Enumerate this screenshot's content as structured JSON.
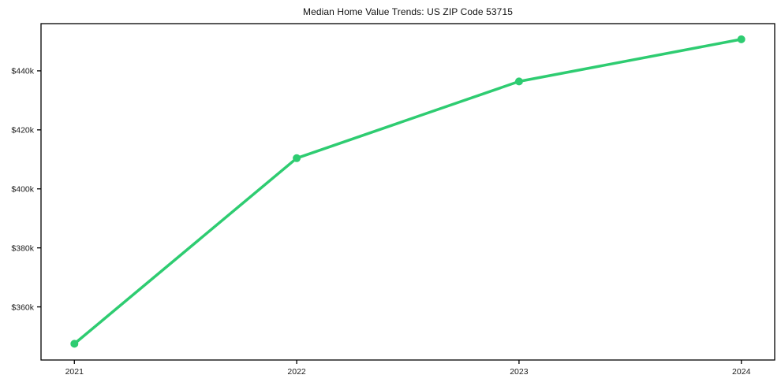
{
  "chart_data": {
    "type": "line",
    "title": "Median Home Value Trends: US ZIP Code 53715",
    "xlabel": "",
    "ylabel": "",
    "x": [
      2021,
      2022,
      2023,
      2024
    ],
    "x_tick_labels": [
      "2021",
      "2022",
      "2023",
      "2024"
    ],
    "series": [
      {
        "name": "Median Home Value",
        "values": [
          347500,
          410400,
          436400,
          450700
        ]
      }
    ],
    "y_ticks": [
      360000,
      380000,
      400000,
      420000,
      440000
    ],
    "y_tick_labels": [
      "$360k",
      "$380k",
      "$400k",
      "$420k",
      "$440k"
    ],
    "xlim": [
      2020.85,
      2024.15
    ],
    "ylim": [
      342000,
      456000
    ],
    "grid": false,
    "legend": "none",
    "marker": "circle"
  },
  "style": {
    "line_color": "#2ecc71",
    "marker_color": "#2ecc71",
    "axis_color": "#000000",
    "text_color": "#1a1a1a",
    "background_color": "#ffffff"
  }
}
